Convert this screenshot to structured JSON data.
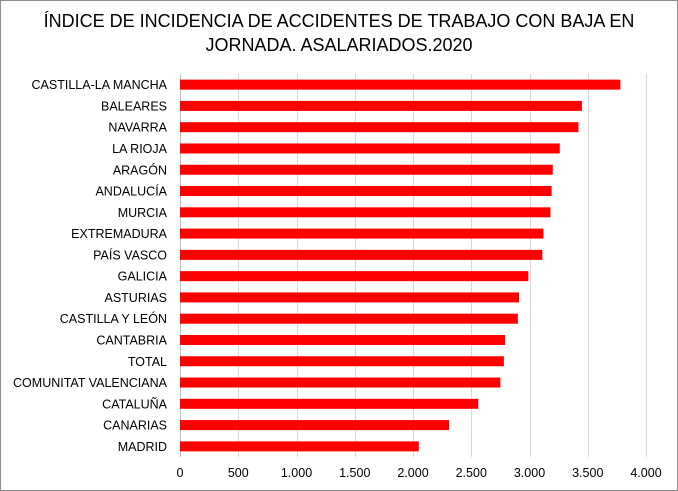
{
  "chart_data": {
    "type": "bar",
    "orientation": "horizontal",
    "title_lines": [
      "ÍNDICE DE INCIDENCIA DE ACCIDENTES DE TRABAJO CON BAJA EN",
      "JORNADA. ASALARIADOS.2020"
    ],
    "xlabel": "",
    "ylabel": "",
    "categories": [
      "CASTILLA-LA MANCHA",
      "BALEARES",
      "NAVARRA",
      "LA RIOJA",
      "ARAGÓN",
      "ANDALUCÍA",
      "MURCIA",
      "EXTREMADURA",
      "PAÍS VASCO",
      "GALICIA",
      "ASTURIAS",
      "CASTILLA Y LEÓN",
      "CANTABRIA",
      "TOTAL",
      "COMUNITAT VALENCIANA",
      "CATALUÑA",
      "CANARIAS",
      "MADRID"
    ],
    "values": [
      3780,
      3450,
      3420,
      3260,
      3200,
      3190,
      3180,
      3120,
      3110,
      2990,
      2910,
      2900,
      2790,
      2780,
      2750,
      2560,
      2310,
      2050
    ],
    "xlim": [
      0,
      4000
    ],
    "x_ticks": [
      0,
      500,
      1000,
      1500,
      2000,
      2500,
      3000,
      3500,
      4000
    ],
    "x_tick_labels": [
      "0",
      "500",
      "1.000",
      "1.500",
      "2.000",
      "2.500",
      "3.000",
      "3.500",
      "4.000"
    ],
    "bar_color": "#ff0000",
    "grid": true,
    "legend": "none"
  }
}
